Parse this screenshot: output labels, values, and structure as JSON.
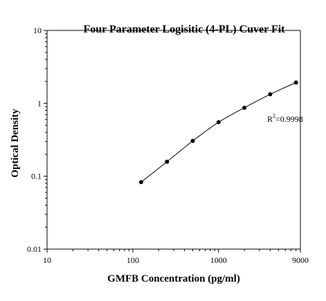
{
  "chart_data": {
    "type": "scatter",
    "title": "Four Parameter Logisitic (4-PL) Cuver Fit",
    "xlabel": "GMFB  Concentration (pg/ml)",
    "ylabel": "Optical Density",
    "x_scale": "log",
    "y_scale": "log",
    "xlim": [
      10,
      9000
    ],
    "ylim": [
      0.01,
      10
    ],
    "x_ticks": [
      10,
      100,
      1000,
      9000
    ],
    "x_tick_labels": [
      "10",
      "100",
      "1000",
      "9000"
    ],
    "y_ticks": [
      0.01,
      0.1,
      1,
      10
    ],
    "y_tick_labels": [
      "0.01",
      "0.1",
      "1",
      "10"
    ],
    "grid": false,
    "legend": "none",
    "series": [
      {
        "points": [
          {
            "x": 125,
            "y": 0.083
          },
          {
            "x": 250,
            "y": 0.158
          },
          {
            "x": 500,
            "y": 0.305
          },
          {
            "x": 1000,
            "y": 0.55
          },
          {
            "x": 2000,
            "y": 0.87
          },
          {
            "x": 4000,
            "y": 1.33
          },
          {
            "x": 8000,
            "y": 1.93
          }
        ],
        "fit_curve": true
      }
    ],
    "annotation": {
      "base": "R",
      "superscript": "2",
      "value": "=0.9998"
    }
  },
  "colors": {
    "background": "#ffffff",
    "axis": "#000000",
    "points": "#000000",
    "curve": "#000000"
  }
}
